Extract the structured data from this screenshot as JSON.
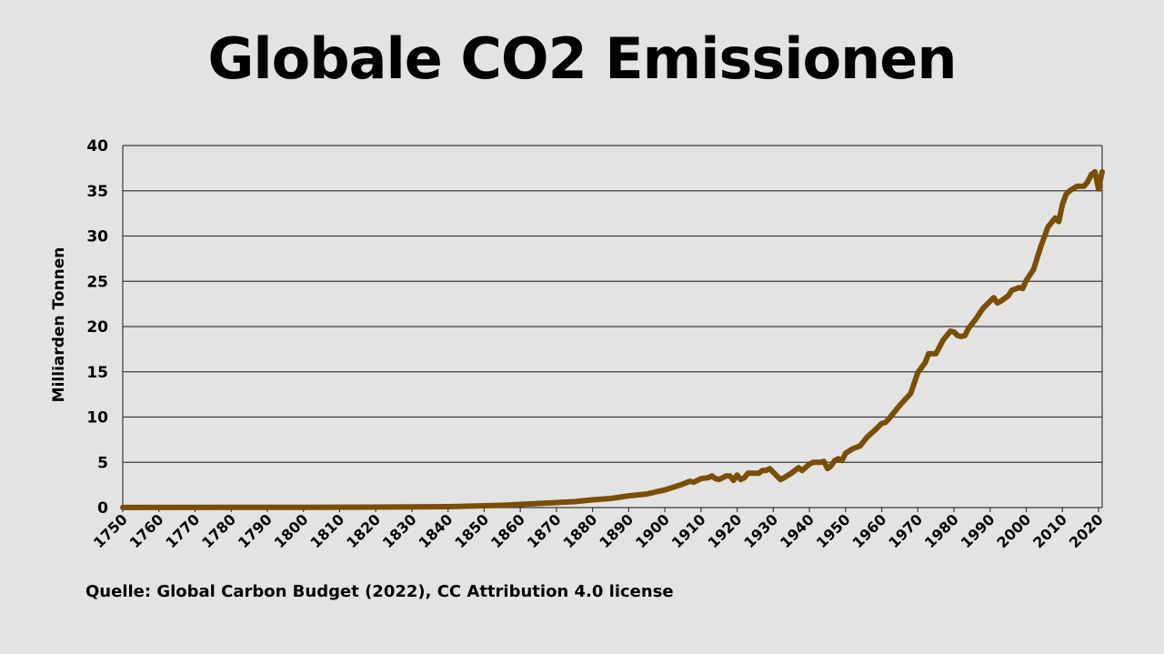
{
  "title": "Globale CO2 Emissionen",
  "source": "Quelle: Global Carbon Budget (2022), CC Attribution 4.0 license",
  "chart_data": {
    "type": "line",
    "ylabel": "Milliarden Tonnen",
    "xlabel": "",
    "xlim": [
      1750,
      2021
    ],
    "ylim": [
      0,
      40
    ],
    "x_ticks": [
      1750,
      1760,
      1770,
      1780,
      1790,
      1800,
      1810,
      1820,
      1830,
      1840,
      1850,
      1860,
      1870,
      1880,
      1890,
      1900,
      1910,
      1920,
      1930,
      1940,
      1950,
      1960,
      1970,
      1980,
      1990,
      2000,
      2010,
      2020
    ],
    "y_ticks": [
      0,
      5,
      10,
      15,
      20,
      25,
      30,
      35,
      40
    ],
    "grid": "horizontal",
    "line_color": "#7a4e05",
    "series": [
      {
        "x": [
          1750,
          1800,
          1810,
          1820,
          1830,
          1840,
          1850,
          1855,
          1860,
          1865,
          1870,
          1875,
          1880,
          1885,
          1890,
          1895,
          1900,
          1902,
          1905,
          1907,
          1908,
          1910,
          1912,
          1913,
          1914,
          1915,
          1917,
          1918,
          1919,
          1920,
          1921,
          1922,
          1923,
          1925,
          1926,
          1927,
          1928,
          1929,
          1930,
          1931,
          1932,
          1933,
          1935,
          1937,
          1938,
          1940,
          1941,
          1943,
          1944,
          1945,
          1946,
          1947,
          1948,
          1949,
          1950,
          1952,
          1954,
          1955,
          1956,
          1958,
          1960,
          1961,
          1962,
          1965,
          1968,
          1970,
          1972,
          1973,
          1974,
          1975,
          1977,
          1979,
          1980,
          1981,
          1982,
          1983,
          1984,
          1986,
          1988,
          1989,
          1990,
          1991,
          1992,
          1993,
          1995,
          1996,
          1998,
          1999,
          2000,
          2002,
          2004,
          2006,
          2008,
          2009,
          2010,
          2011,
          2012,
          2014,
          2015,
          2016,
          2017,
          2018,
          2019,
          2020,
          2021
        ],
        "values": [
          0.01,
          0.03,
          0.04,
          0.05,
          0.07,
          0.1,
          0.2,
          0.25,
          0.35,
          0.45,
          0.55,
          0.65,
          0.85,
          1.0,
          1.3,
          1.5,
          1.95,
          2.2,
          2.6,
          2.9,
          2.8,
          3.2,
          3.3,
          3.5,
          3.2,
          3.1,
          3.5,
          3.5,
          3.0,
          3.6,
          3.1,
          3.3,
          3.8,
          3.8,
          3.8,
          4.1,
          4.1,
          4.3,
          3.9,
          3.5,
          3.1,
          3.3,
          3.8,
          4.4,
          4.1,
          4.8,
          5.0,
          5.0,
          5.1,
          4.3,
          4.6,
          5.2,
          5.4,
          5.2,
          6.0,
          6.5,
          6.8,
          7.3,
          7.8,
          8.5,
          9.3,
          9.4,
          9.8,
          11.3,
          12.6,
          14.9,
          16.0,
          17.0,
          17.0,
          17.0,
          18.5,
          19.5,
          19.4,
          19.0,
          18.9,
          19.0,
          19.8,
          20.8,
          22.0,
          22.4,
          22.8,
          23.2,
          22.6,
          22.8,
          23.4,
          24.0,
          24.3,
          24.2,
          25.1,
          26.3,
          28.8,
          31.0,
          32.0,
          31.6,
          33.5,
          34.6,
          35.0,
          35.5,
          35.5,
          35.5,
          36.0,
          36.8,
          37.1,
          35.2,
          37.1
        ]
      }
    ]
  }
}
